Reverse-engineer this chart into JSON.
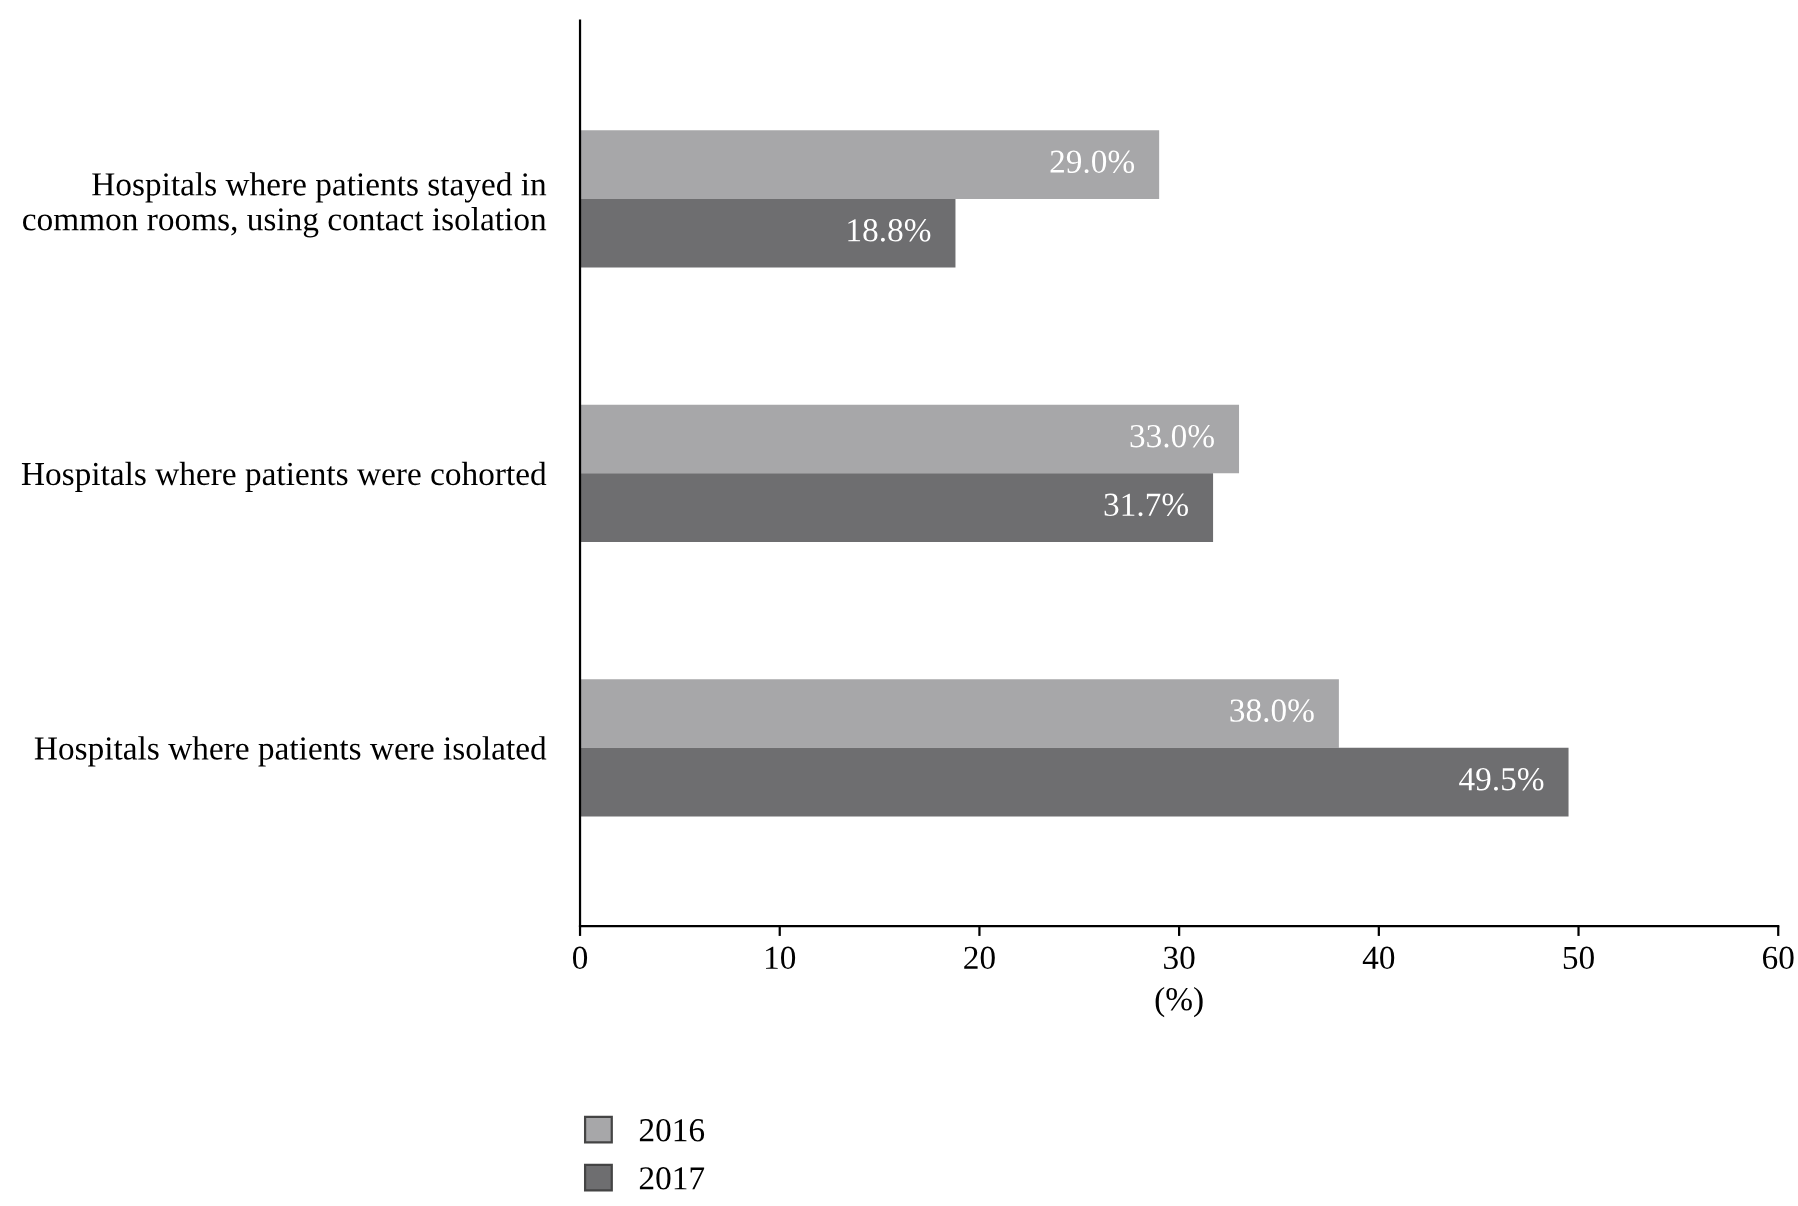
{
  "chart_data": {
    "type": "bar",
    "orientation": "horizontal",
    "xlabel": "(%)",
    "categories": [
      "Hospitals where patients stayed in common rooms, using contact isolation",
      "Hospitals where patients were cohorted",
      "Hospitals where patients were isolated"
    ],
    "series": [
      {
        "name": "2016",
        "color": "#a7a7a9",
        "values": [
          29.0,
          33.0,
          38.0
        ],
        "value_labels": [
          "29.0%",
          "33.0%",
          "38.0%"
        ]
      },
      {
        "name": "2017",
        "color": "#6e6e70",
        "values": [
          18.8,
          31.7,
          49.5
        ],
        "value_labels": [
          "18.8%",
          "31.7%",
          "49.5%"
        ]
      }
    ],
    "xlim": [
      0,
      60
    ],
    "xticks": [
      0,
      10,
      20,
      30,
      40,
      50,
      60
    ],
    "grid": false,
    "legend": "bottom"
  }
}
